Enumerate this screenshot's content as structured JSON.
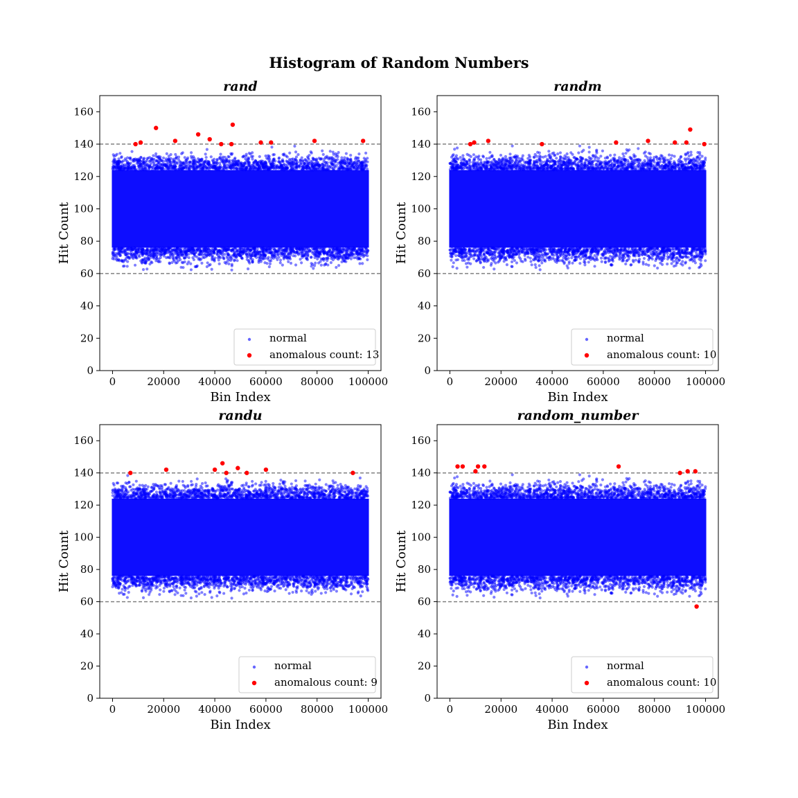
{
  "figure": {
    "title": "Histogram of Random Numbers"
  },
  "chart_data": [
    {
      "type": "scatter",
      "title": "rand",
      "xlabel": "Bin Index",
      "ylabel": "Hit Count",
      "xlim": [
        -5000,
        105000
      ],
      "ylim": [
        0,
        170
      ],
      "xticks": [
        0,
        20000,
        40000,
        60000,
        80000,
        100000
      ],
      "yticks": [
        0,
        20,
        40,
        60,
        80,
        100,
        120,
        140,
        160
      ],
      "thresholds": [
        60,
        140
      ],
      "normal_band": {
        "x_range": [
          0,
          100000
        ],
        "core_range": [
          76,
          124
        ],
        "sparse_range": [
          62,
          139
        ]
      },
      "legend": {
        "position": "lower right",
        "entries": [
          "normal",
          "anomalous count: 13"
        ]
      },
      "series": [
        {
          "name": "normal",
          "color": "#0000ff"
        },
        {
          "name": "anomalous count: 13",
          "color": "#ff0000",
          "points": [
            [
              9000,
              140
            ],
            [
              11000,
              141
            ],
            [
              17000,
              150
            ],
            [
              24500,
              142
            ],
            [
              33500,
              146
            ],
            [
              38000,
              143
            ],
            [
              42500,
              140
            ],
            [
              46500,
              140
            ],
            [
              47000,
              152
            ],
            [
              58000,
              141
            ],
            [
              62000,
              141
            ],
            [
              79000,
              142
            ],
            [
              98000,
              142
            ]
          ]
        }
      ]
    },
    {
      "type": "scatter",
      "title": "randm",
      "xlabel": "Bin Index",
      "ylabel": "Hit Count",
      "xlim": [
        -5000,
        105000
      ],
      "ylim": [
        0,
        170
      ],
      "xticks": [
        0,
        20000,
        40000,
        60000,
        80000,
        100000
      ],
      "yticks": [
        0,
        20,
        40,
        60,
        80,
        100,
        120,
        140,
        160
      ],
      "thresholds": [
        60,
        140
      ],
      "normal_band": {
        "x_range": [
          0,
          100000
        ],
        "core_range": [
          76,
          124
        ],
        "sparse_range": [
          62,
          139
        ]
      },
      "legend": {
        "position": "lower right",
        "entries": [
          "normal",
          "anomalous count: 10"
        ]
      },
      "series": [
        {
          "name": "normal",
          "color": "#0000ff"
        },
        {
          "name": "anomalous count: 10",
          "color": "#ff0000",
          "points": [
            [
              8000,
              140
            ],
            [
              9500,
              141
            ],
            [
              15000,
              142
            ],
            [
              36000,
              140
            ],
            [
              65000,
              141
            ],
            [
              77500,
              142
            ],
            [
              88000,
              141
            ],
            [
              92500,
              141
            ],
            [
              94000,
              149
            ],
            [
              99500,
              140
            ]
          ]
        }
      ]
    },
    {
      "type": "scatter",
      "title": "randu",
      "xlabel": "Bin Index",
      "ylabel": "Hit Count",
      "xlim": [
        -5000,
        105000
      ],
      "ylim": [
        0,
        170
      ],
      "xticks": [
        0,
        20000,
        40000,
        60000,
        80000,
        100000
      ],
      "yticks": [
        0,
        20,
        40,
        60,
        80,
        100,
        120,
        140,
        160
      ],
      "thresholds": [
        60,
        140
      ],
      "normal_band": {
        "x_range": [
          0,
          100000
        ],
        "core_range": [
          76,
          124
        ],
        "sparse_range": [
          62,
          139
        ]
      },
      "legend": {
        "position": "lower right",
        "entries": [
          "normal",
          "anomalous count: 9"
        ]
      },
      "series": [
        {
          "name": "normal",
          "color": "#0000ff"
        },
        {
          "name": "anomalous count: 9",
          "color": "#ff0000",
          "points": [
            [
              7000,
              140
            ],
            [
              21000,
              142
            ],
            [
              40000,
              142
            ],
            [
              43000,
              146
            ],
            [
              44500,
              140
            ],
            [
              49000,
              143
            ],
            [
              52500,
              140
            ],
            [
              60000,
              142
            ],
            [
              94000,
              140
            ]
          ]
        }
      ]
    },
    {
      "type": "scatter",
      "title": "random_number",
      "xlabel": "Bin Index",
      "ylabel": "Hit Count",
      "xlim": [
        -5000,
        105000
      ],
      "ylim": [
        0,
        170
      ],
      "xticks": [
        0,
        20000,
        40000,
        60000,
        80000,
        100000
      ],
      "yticks": [
        0,
        20,
        40,
        60,
        80,
        100,
        120,
        140,
        160
      ],
      "thresholds": [
        60,
        140
      ],
      "normal_band": {
        "x_range": [
          0,
          100000
        ],
        "core_range": [
          76,
          124
        ],
        "sparse_range": [
          62,
          139
        ]
      },
      "legend": {
        "position": "lower right",
        "entries": [
          "normal",
          "anomalous count: 10"
        ]
      },
      "series": [
        {
          "name": "normal",
          "color": "#0000ff"
        },
        {
          "name": "anomalous count: 10",
          "color": "#ff0000",
          "points": [
            [
              3000,
              144
            ],
            [
              5000,
              144
            ],
            [
              10000,
              141
            ],
            [
              11000,
              144
            ],
            [
              13500,
              144
            ],
            [
              66000,
              144
            ],
            [
              90000,
              140
            ],
            [
              93000,
              141
            ],
            [
              96000,
              141
            ],
            [
              96500,
              57
            ]
          ]
        }
      ]
    }
  ]
}
